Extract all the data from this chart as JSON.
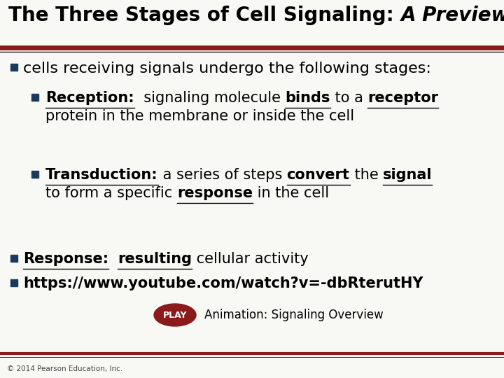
{
  "title_normal": "The Three Stages of Cell Signaling: ",
  "title_italic": "A Preview",
  "bg_color": "#f8f8f4",
  "rule_color": "#8B1A1A",
  "bullet_color": "#1a3a5c",
  "body_color": "#000000",
  "footer_text": "© 2014 Pearson Education, Inc.",
  "animation_text": "Animation: Signaling Overview",
  "play_button_color": "#8B1A1A",
  "play_text_color": "#ffffff"
}
